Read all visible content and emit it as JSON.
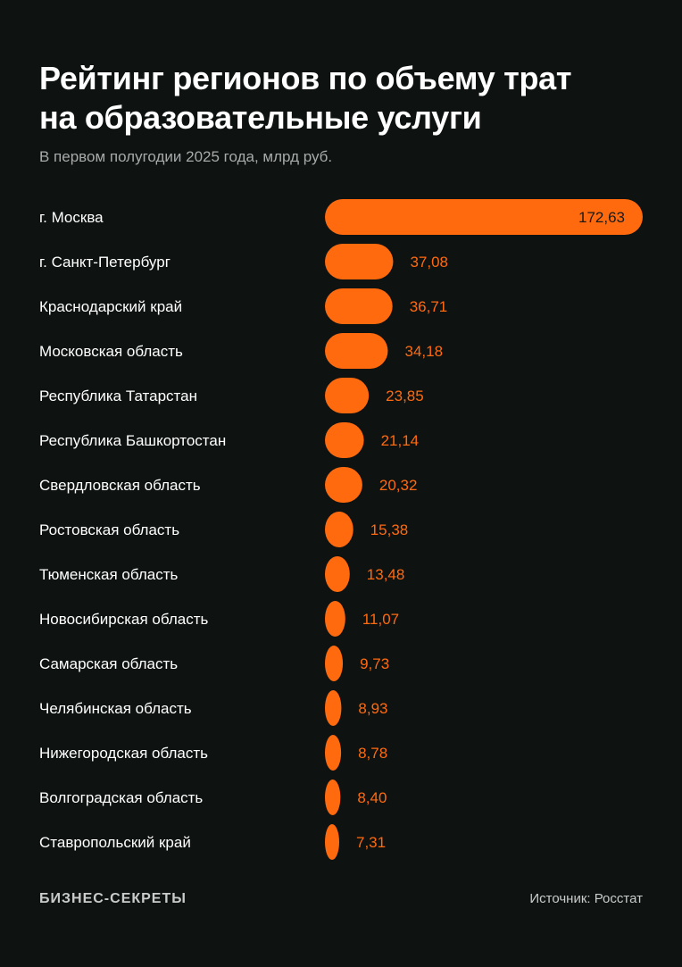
{
  "header": {
    "title_line1": "Рейтинг регионов по объему трат",
    "title_line2": "на образовательные услуги",
    "subtitle": "В первом полугодии 2025 года, млрд руб."
  },
  "footer": {
    "brand": "БИЗНЕС-СЕКРЕТЫ",
    "source": "Источник: Росстат"
  },
  "colors": {
    "background": "#0e1312",
    "bar": "#ff6a0f",
    "label_text": "#ffffff",
    "value_text_outside": "#ff6a0f",
    "value_text_inside": "#1a1a1a"
  },
  "chart_data": {
    "type": "bar",
    "orientation": "horizontal",
    "title": "Рейтинг регионов по объему трат на образовательные услуги",
    "subtitle": "В первом полугодии 2025 года, млрд руб.",
    "unit": "млрд руб.",
    "categories": [
      "г. Москва",
      "г. Санкт-Петербург",
      "Краснодарский край",
      "Московская область",
      "Республика Татарстан",
      "Республика Башкортостан",
      "Свердловская область",
      "Ростовская область",
      "Тюменская область",
      "Новосибирская область",
      "Самарская область",
      "Челябинская область",
      "Нижегородская область",
      "Волгоградская область",
      "Ставропольский край"
    ],
    "values": [
      172.63,
      37.08,
      36.71,
      34.18,
      23.85,
      21.14,
      20.32,
      15.38,
      13.48,
      11.07,
      9.73,
      8.93,
      8.78,
      8.4,
      7.31
    ],
    "value_labels": [
      "172,63",
      "37,08",
      "36,71",
      "34,18",
      "23,85",
      "21,14",
      "20,32",
      "15,38",
      "13,48",
      "11,07",
      "9,73",
      "8,93",
      "8,78",
      "8,40",
      "7,31"
    ],
    "xlim": [
      0,
      172.63
    ],
    "grid": false,
    "legend": "none"
  }
}
